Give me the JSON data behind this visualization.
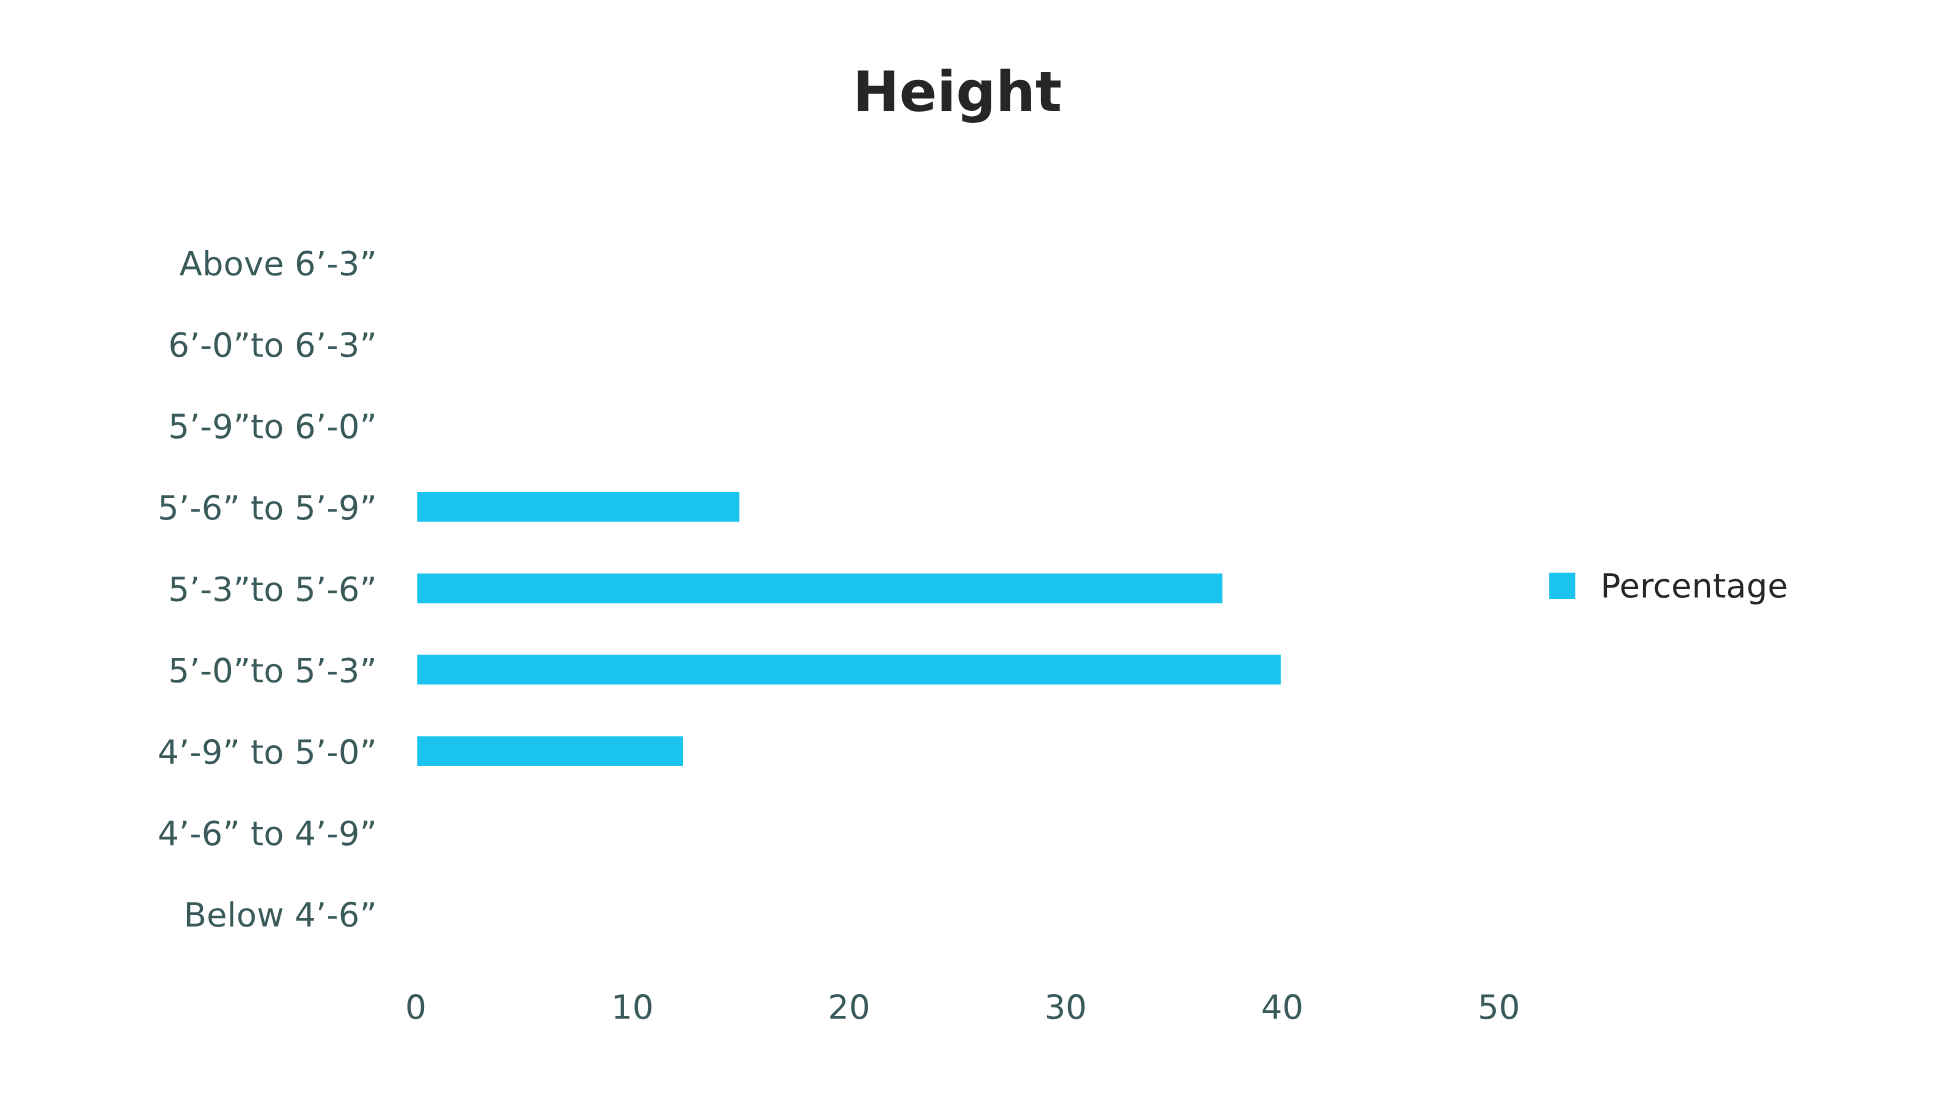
{
  "chart_data": {
    "type": "bar",
    "title": "Height",
    "orientation": "horizontal",
    "categories": [
      "Above 6’-3”",
      "6’-0”to 6’-3”",
      "5’-9”to 6’-0”",
      "5’-6” to 5’-9”",
      "5’-3”to 5’-6”",
      "5’-0”to 5’-3”",
      "4’-9” to 5’-0”",
      "4’-6” to 4’-9”",
      "Below 4’-6”"
    ],
    "series": [
      {
        "name": "Percentage",
        "color": "#1bc4ee",
        "values": [
          null,
          null,
          null,
          15,
          37.3,
          40,
          12.4,
          null,
          null
        ]
      }
    ],
    "xlim": [
      0,
      50
    ],
    "xticks": [
      0,
      10,
      20,
      30,
      40,
      50
    ],
    "grid": false,
    "legend": "right"
  }
}
